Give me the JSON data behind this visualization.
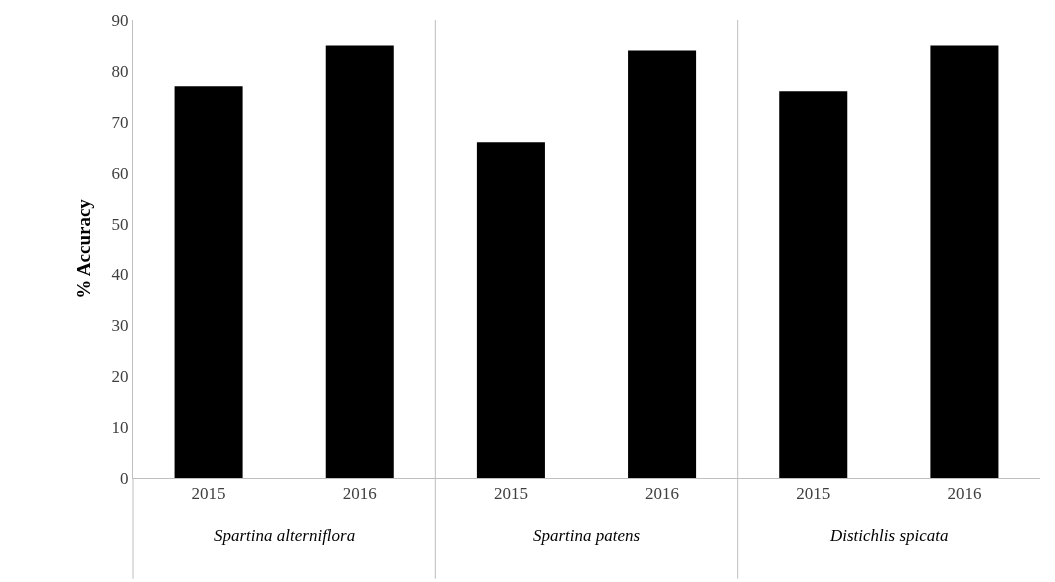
{
  "chart_data": {
    "type": "bar",
    "ylabel": "% Accuracy",
    "categories": [
      "2015",
      "2016",
      "2015",
      "2016",
      "2015",
      "2016"
    ],
    "values": [
      77,
      85,
      66,
      84,
      76,
      85
    ],
    "color": "#000000",
    "ylim": [
      0,
      90
    ],
    "yticks": [
      0,
      10,
      20,
      30,
      40,
      50,
      60,
      70,
      80,
      90
    ],
    "annotations": [
      "Spartina alterniflora",
      "Spartina patens",
      "Distichlis spicata"
    ]
  }
}
